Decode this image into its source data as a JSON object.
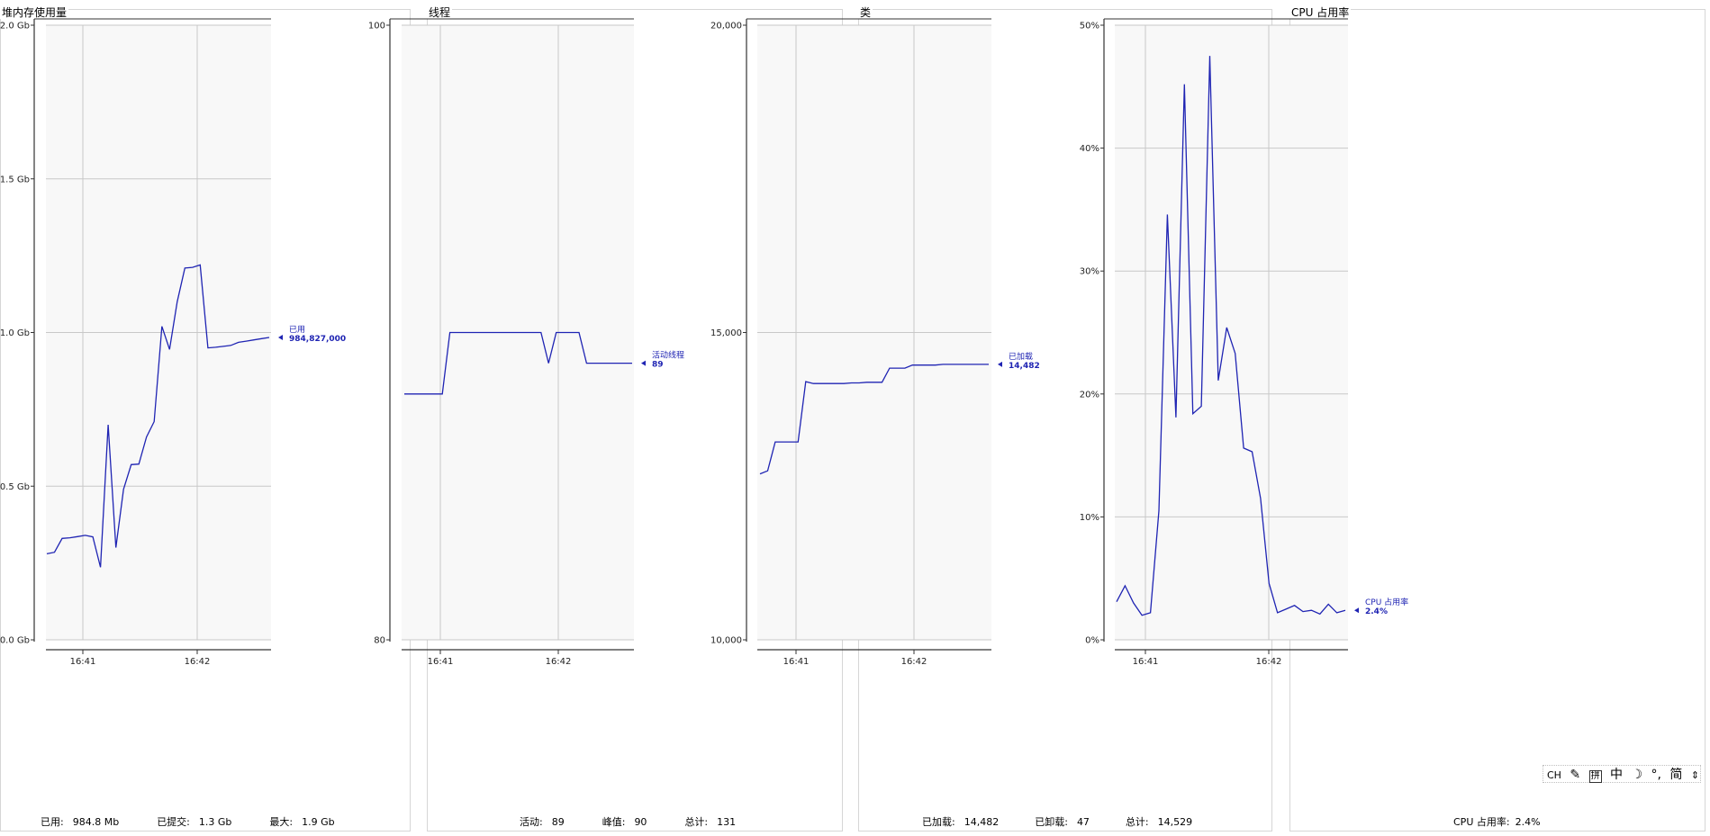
{
  "colors": {
    "series": "#1f24b3",
    "grid": "#c8c8c8",
    "plot_bg": "#f8f8f8",
    "axis": "#333333"
  },
  "panels": {
    "heap": {
      "title": "堆内存使用量",
      "marker": {
        "label": "已用",
        "value": "984,827,000"
      },
      "summary": [
        {
          "label": "已用:",
          "value": "984.8 Mb"
        },
        {
          "label": "已提交:",
          "value": "1.3 Gb"
        },
        {
          "label": "最大:",
          "value": "1.9 Gb"
        }
      ]
    },
    "threads": {
      "title": "线程",
      "marker": {
        "label": "活动线程",
        "value": "89"
      },
      "summary": [
        {
          "label": "活动:",
          "value": "89"
        },
        {
          "label": "峰值:",
          "value": "90"
        },
        {
          "label": "总计:",
          "value": "131"
        }
      ]
    },
    "classes": {
      "title": "类",
      "marker": {
        "label": "已加载",
        "value": "14,482"
      },
      "summary": [
        {
          "label": "已加载:",
          "value": "14,482"
        },
        {
          "label": "已卸载:",
          "value": "47"
        },
        {
          "label": "总计:",
          "value": "14,529"
        }
      ]
    },
    "cpu": {
      "title": "CPU 占用率",
      "marker": {
        "label": "CPU 占用率",
        "value": "2.4%"
      },
      "summary": [
        {
          "label": "CPU 占用率:",
          "value": "2.4%"
        }
      ]
    }
  },
  "ime_toolbar": {
    "items": [
      "CH",
      "拼",
      "中",
      "°,",
      "简"
    ]
  },
  "chart_data": [
    {
      "type": "line",
      "title": "堆内存使用量",
      "y_unit": "Gb",
      "ylim": [
        0,
        2.0
      ],
      "yticks": [
        0,
        0.5,
        1.0,
        1.5,
        2.0
      ],
      "ytick_labels": [
        "0.0 Gb",
        "0.5 Gb",
        "1.0 Gb",
        "1.5 Gb",
        "2.0 Gb"
      ],
      "xtick_labels": [
        "16:41",
        "16:42"
      ],
      "grid": true,
      "series": [
        {
          "name": "已用",
          "values": [
            0.28,
            0.285,
            0.33,
            0.332,
            0.336,
            0.34,
            0.335,
            0.236,
            0.7,
            0.3,
            0.49,
            0.57,
            0.572,
            0.66,
            0.71,
            1.02,
            0.945,
            1.1,
            1.21,
            1.212,
            1.22,
            0.95,
            0.952,
            0.955,
            0.958,
            0.968,
            0.972,
            0.976,
            0.98,
            0.984
          ]
        }
      ]
    },
    {
      "type": "line",
      "title": "线程",
      "ylim": [
        80,
        100
      ],
      "yticks": [
        80,
        100
      ],
      "ytick_labels": [
        "80",
        "100"
      ],
      "xtick_labels": [
        "16:41",
        "16:42"
      ],
      "grid": true,
      "series": [
        {
          "name": "活动线程",
          "values": [
            88,
            88,
            88,
            88,
            88,
            88,
            90,
            90,
            90,
            90,
            90,
            90,
            90,
            90,
            90,
            90,
            90,
            90,
            90,
            89,
            90,
            90,
            90,
            90,
            89,
            89,
            89,
            89,
            89,
            89,
            89
          ]
        }
      ]
    },
    {
      "type": "line",
      "title": "类",
      "ylim": [
        10000,
        20000
      ],
      "yticks": [
        10000,
        15000,
        20000
      ],
      "ytick_labels": [
        "10,000",
        "15,000",
        "20,000"
      ],
      "xtick_labels": [
        "16:41",
        "16:42"
      ],
      "grid": true,
      "series": [
        {
          "name": "已加载",
          "values": [
            12700,
            12750,
            13220,
            13220,
            13220,
            13220,
            14200,
            14170,
            14170,
            14170,
            14170,
            14170,
            14180,
            14180,
            14190,
            14190,
            14190,
            14420,
            14420,
            14420,
            14470,
            14470,
            14470,
            14470,
            14482,
            14482,
            14482,
            14482,
            14482,
            14482,
            14482
          ]
        }
      ]
    },
    {
      "type": "line",
      "title": "CPU 占用率",
      "y_unit": "%",
      "ylim": [
        0,
        50
      ],
      "yticks": [
        0,
        10,
        20,
        30,
        40,
        50
      ],
      "ytick_labels": [
        "0%",
        "10%",
        "20%",
        "30%",
        "40%",
        "50%"
      ],
      "xtick_labels": [
        "16:41",
        "16:42"
      ],
      "grid": true,
      "series": [
        {
          "name": "CPU 占用率",
          "values": [
            3.1,
            4.4,
            3.0,
            2.0,
            2.2,
            10.5,
            34.6,
            18.1,
            45.2,
            18.4,
            19.0,
            47.5,
            21.1,
            25.4,
            23.3,
            15.6,
            15.3,
            11.5,
            4.6,
            2.2,
            2.5,
            2.8,
            2.3,
            2.4,
            2.1,
            2.9,
            2.2,
            2.4
          ]
        }
      ]
    }
  ]
}
